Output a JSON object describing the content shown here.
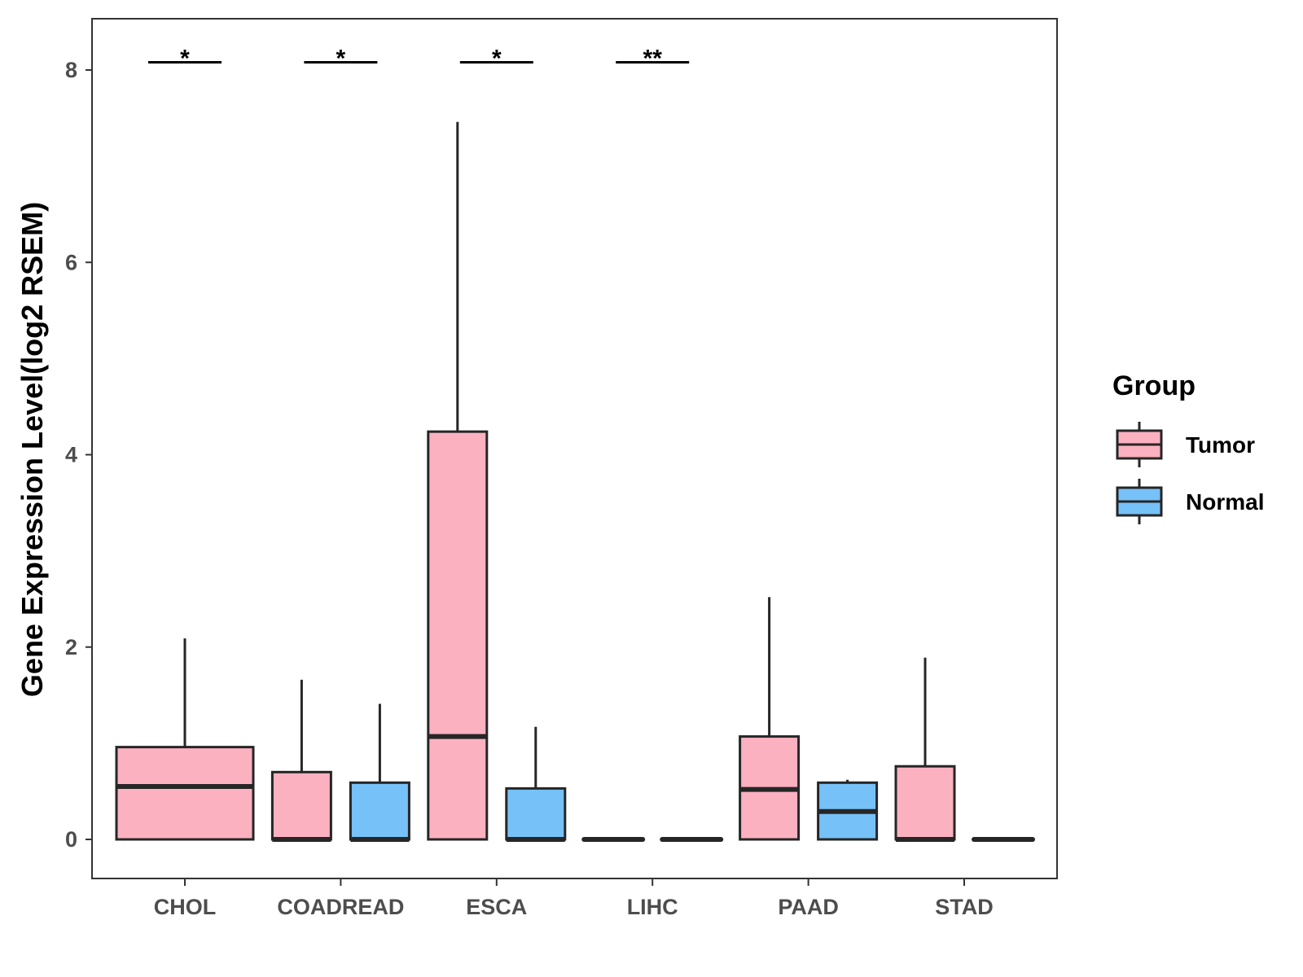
{
  "chart_data": {
    "type": "boxplot",
    "title": "",
    "xlabel": "",
    "ylabel": "Gene Expression Level(log2 RSEM)",
    "ylim": [
      -0.4,
      8.5
    ],
    "yticks": [
      0,
      2,
      4,
      6,
      8
    ],
    "categories": [
      "CHOL",
      "COADREAD",
      "ESCA",
      "LIHC",
      "PAAD",
      "STAD"
    ],
    "legend": {
      "title": "Group",
      "position": "right"
    },
    "series": [
      {
        "name": "Tumor",
        "color": "#FBB1C0",
        "boxes": [
          {
            "category": "CHOL",
            "min": 0,
            "q1": 0,
            "median": 0.55,
            "q3": 0.96,
            "max": 2.09
          },
          {
            "category": "COADREAD",
            "min": 0,
            "q1": 0,
            "median": 0,
            "q3": 0.7,
            "max": 1.66
          },
          {
            "category": "ESCA",
            "min": 0,
            "q1": 0,
            "median": 1.07,
            "q3": 4.24,
            "max": 7.46
          },
          {
            "category": "LIHC",
            "min": 0,
            "q1": 0,
            "median": 0,
            "q3": 0,
            "max": 0
          },
          {
            "category": "PAAD",
            "min": 0,
            "q1": 0,
            "median": 0.52,
            "q3": 1.07,
            "max": 2.52
          },
          {
            "category": "STAD",
            "min": 0,
            "q1": 0,
            "median": 0,
            "q3": 0.76,
            "max": 1.89
          }
        ]
      },
      {
        "name": "Normal",
        "color": "#76C1F8",
        "boxes": [
          {
            "category": "CHOL",
            "present": false
          },
          {
            "category": "COADREAD",
            "min": 0,
            "q1": 0,
            "median": 0,
            "q3": 0.59,
            "max": 1.41
          },
          {
            "category": "ESCA",
            "min": 0,
            "q1": 0,
            "median": 0,
            "q3": 0.53,
            "max": 1.17
          },
          {
            "category": "LIHC",
            "min": 0,
            "q1": 0,
            "median": 0,
            "q3": 0,
            "max": 0
          },
          {
            "category": "PAAD",
            "min": 0,
            "q1": 0,
            "median": 0.29,
            "q3": 0.59,
            "max": 0.62
          },
          {
            "category": "STAD",
            "min": 0,
            "q1": 0,
            "median": 0,
            "q3": 0,
            "max": 0
          }
        ]
      }
    ],
    "significance": [
      {
        "category": "CHOL",
        "label": "*",
        "y": 8.08
      },
      {
        "category": "COADREAD",
        "label": "*",
        "y": 8.08
      },
      {
        "category": "ESCA",
        "label": "*",
        "y": 8.08
      },
      {
        "category": "LIHC",
        "label": "**",
        "y": 8.08
      }
    ]
  }
}
